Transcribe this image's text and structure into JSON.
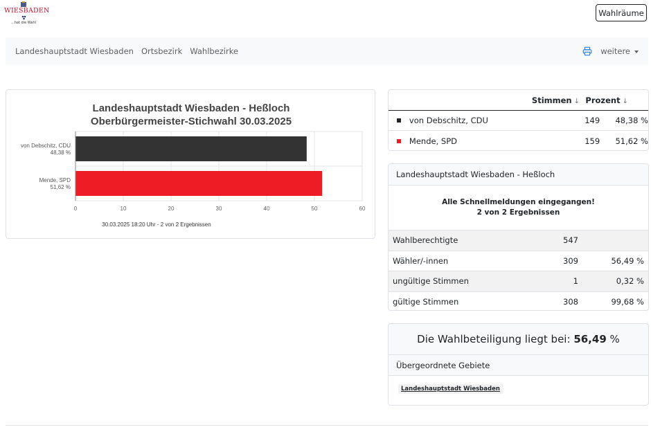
{
  "logo": {
    "text": "WIESBADEN",
    "tagline": "...hat die Wahl"
  },
  "header": {
    "wahlraeume_label": "Wahlräume"
  },
  "nav": {
    "items": [
      "Landeshauptstadt Wiesbaden",
      "Ortsbezirk",
      "Wahlbezirke"
    ],
    "more_label": "weitere",
    "print_icon": "printer-icon"
  },
  "chart_data": {
    "type": "bar",
    "orientation": "horizontal",
    "title": "Landeshauptstadt Wiesbaden - Heßloch",
    "subtitle": "Oberbürgermeister-Stichwahl 30.03.2025",
    "categories": [
      "von Debschitz, CDU",
      "Mende, SPD"
    ],
    "category_labels": [
      "48,38 %",
      "51,62 %"
    ],
    "values": [
      48.38,
      51.62
    ],
    "colors": [
      "#333333",
      "#ee1c25"
    ],
    "xlim": [
      0,
      60
    ],
    "xticks": [
      0,
      10,
      20,
      30,
      40,
      50,
      60
    ],
    "caption": "30.03.2025 18:20 Uhr - 2 von 2 Ergebnissen",
    "grid": true,
    "legend": "none"
  },
  "results": {
    "headers": {
      "votes": "Stimmen",
      "percent": "Prozent",
      "sort_arrow": "↓"
    },
    "rows": [
      {
        "name": "von Debschitz, CDU",
        "votes": "149",
        "percent": "48,38 %",
        "color": "#212529"
      },
      {
        "name": "Mende, SPD",
        "votes": "159",
        "percent": "51,62 %",
        "color": "#ee1c25"
      }
    ]
  },
  "info": {
    "title": "Landeshauptstadt Wiesbaden - Heßloch",
    "msg_line1": "Alle Schnellmeldungen eingegangen!",
    "msg_line2": "2 von 2 Ergebnissen",
    "rows": [
      {
        "label": "Wahlberechtigte",
        "value": "547",
        "percent": ""
      },
      {
        "label": "Wähler/-innen",
        "value": "309",
        "percent": "56,49 %"
      },
      {
        "label": "ungültige Stimmen",
        "value": "1",
        "percent": "0,32 %"
      },
      {
        "label": "gültige Stimmen",
        "value": "308",
        "percent": "99,68 %"
      }
    ]
  },
  "turnout": {
    "prefix": "Die Wahlbeteiligung liegt bei:",
    "value": "56,49",
    "suffix": "%"
  },
  "parent": {
    "title": "Übergeordnete Gebiete",
    "link": "Landeshauptstadt Wiesbaden"
  }
}
